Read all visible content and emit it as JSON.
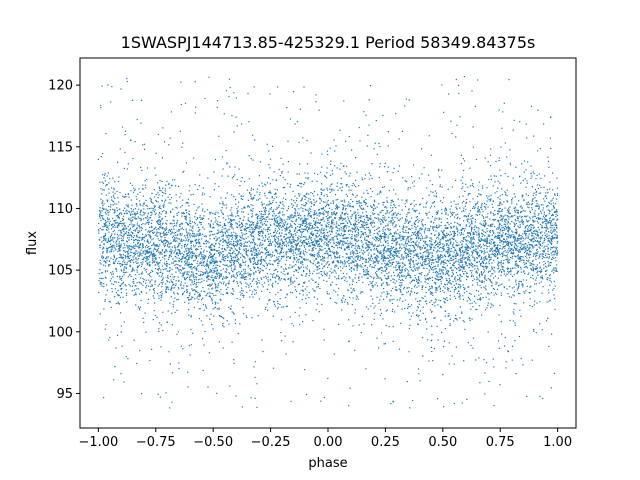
{
  "chart_data": {
    "type": "scatter",
    "title": "1SWASPJ144713.85-425329.1 Period 58349.84375s",
    "xlabel": "phase",
    "ylabel": "flux",
    "xlim": [
      -1.08,
      1.08
    ],
    "ylim": [
      92.2,
      122.2
    ],
    "xticks": [
      -1.0,
      -0.75,
      -0.5,
      -0.25,
      0.0,
      0.25,
      0.5,
      0.75,
      1.0
    ],
    "xtick_labels": [
      "−1.00",
      "−0.75",
      "−0.50",
      "−0.25",
      "0.00",
      "0.25",
      "0.50",
      "0.75",
      "1.00"
    ],
    "yticks": [
      95,
      100,
      105,
      110,
      115,
      120
    ],
    "ytick_labels": [
      "95",
      "100",
      "105",
      "110",
      "115",
      "120"
    ],
    "grid": false,
    "point_color": "#1f77b4",
    "phase_range": [
      -1.0,
      1.0
    ],
    "flux_range": [
      93.8,
      120.8
    ],
    "trend": {
      "phase": [
        -1.0,
        -0.75,
        -0.5,
        -0.25,
        0.0,
        0.25,
        0.5,
        0.75,
        1.0
      ],
      "median_flux": [
        107.8,
        107.2,
        106.0,
        107.6,
        107.7,
        107.0,
        105.9,
        107.4,
        107.7
      ]
    },
    "band_halfwidth": 3.6
  }
}
